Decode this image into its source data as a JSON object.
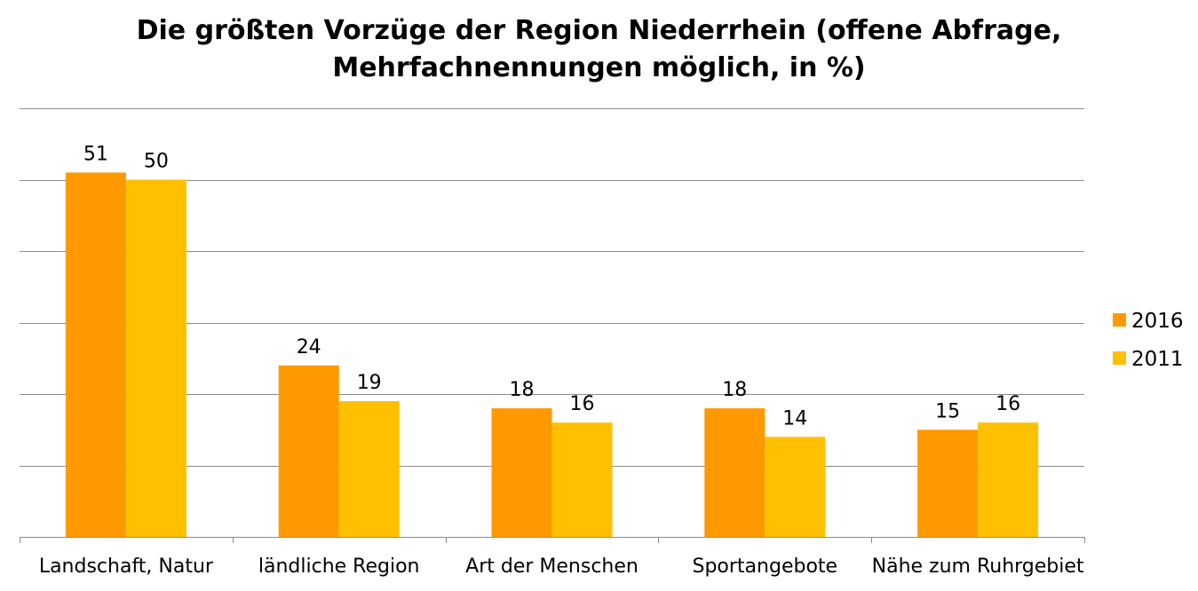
{
  "chart_data": {
    "type": "bar",
    "title_lines": [
      "Die größten Vorzüge der Region Niederrhein (offene Abfrage,",
      "Mehrfachnennungen möglich, in %)"
    ],
    "categories": [
      "Landschaft, Natur",
      "ländliche Region",
      "Art der Menschen",
      "Sportangebote",
      "Nähe zum Ruhrgebiet"
    ],
    "series": [
      {
        "name": "2016",
        "values": [
          51,
          24,
          18,
          18,
          15
        ],
        "color": "#FF9900"
      },
      {
        "name": "2011",
        "values": [
          50,
          19,
          16,
          14,
          16
        ],
        "color": "#FFC000"
      }
    ],
    "ylim": [
      0,
      60
    ],
    "grid": true,
    "legend_position": "right"
  }
}
